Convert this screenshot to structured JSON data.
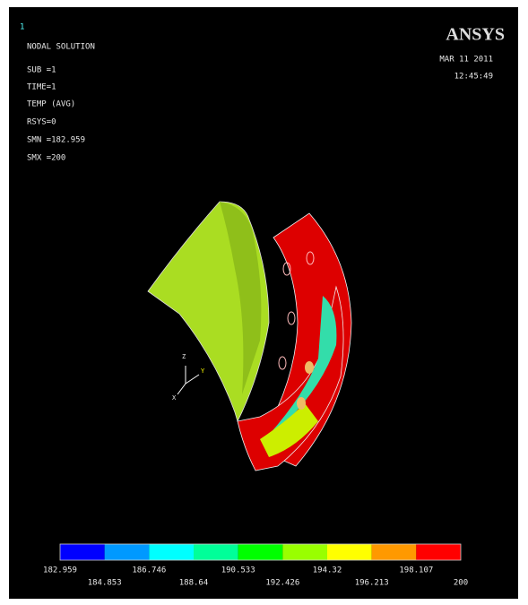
{
  "window_number": "1",
  "header": {
    "lines": [
      "NODAL SOLUTION",
      "SUB =1",
      "TIME=1",
      "TEMP      (AVG)",
      "RSYS=0",
      "SMN =182.959",
      "SMX =200"
    ]
  },
  "logo": "ANSYS",
  "date": "MAR 11 2011",
  "time": "12:45:49",
  "triad": [
    "Z",
    "Y",
    "X"
  ],
  "legend": {
    "colors": [
      "#0000ff",
      "#0099ff",
      "#00ffff",
      "#00ff99",
      "#00ff00",
      "#99ff00",
      "#ffff00",
      "#ff9900",
      "#ff0000"
    ],
    "labels": [
      "182.959",
      "184.853",
      "186.746",
      "188.64",
      "190.533",
      "192.426",
      "194.32",
      "196.213",
      "198.107",
      "200"
    ]
  }
}
